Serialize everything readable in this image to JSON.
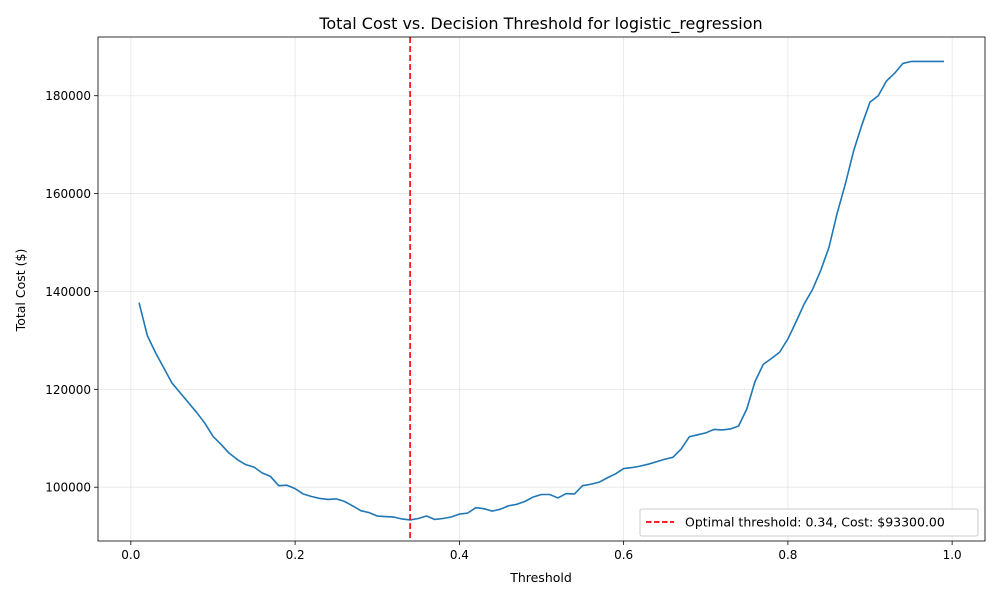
{
  "chart_data": {
    "type": "line",
    "title": "Total Cost vs. Decision Threshold for logistic_regression",
    "xlabel": "Threshold",
    "ylabel": "Total Cost ($)",
    "xlim": [
      -0.04,
      1.04
    ],
    "ylim": [
      89000,
      192000
    ],
    "xticks": [
      0.0,
      0.2,
      0.4,
      0.6,
      0.8,
      1.0
    ],
    "xtick_labels": [
      "0.0",
      "0.2",
      "0.4",
      "0.6",
      "0.8",
      "1.0"
    ],
    "yticks": [
      100000,
      120000,
      140000,
      160000,
      180000
    ],
    "ytick_labels": [
      "100000",
      "120000",
      "140000",
      "160000",
      "180000"
    ],
    "grid": true,
    "legend_position": "lower-right",
    "series": [
      {
        "color": "#1f77b4",
        "x": [
          0.01,
          0.02,
          0.03,
          0.04,
          0.05,
          0.06,
          0.07,
          0.08,
          0.09,
          0.1,
          0.11,
          0.12,
          0.13,
          0.14,
          0.15,
          0.16,
          0.17,
          0.18,
          0.19,
          0.2,
          0.21,
          0.22,
          0.23,
          0.24,
          0.25,
          0.26,
          0.27,
          0.28,
          0.29,
          0.3,
          0.31,
          0.32,
          0.33,
          0.34,
          0.35,
          0.36,
          0.37,
          0.38,
          0.39,
          0.4,
          0.41,
          0.42,
          0.43,
          0.44,
          0.45,
          0.46,
          0.47,
          0.48,
          0.49,
          0.5,
          0.51,
          0.52,
          0.53,
          0.54,
          0.55,
          0.56,
          0.57,
          0.58,
          0.59,
          0.6,
          0.61,
          0.62,
          0.63,
          0.64,
          0.65,
          0.66,
          0.67,
          0.68,
          0.69,
          0.7,
          0.71,
          0.72,
          0.73,
          0.74,
          0.75,
          0.76,
          0.77,
          0.78,
          0.79,
          0.8,
          0.81,
          0.82,
          0.83,
          0.84,
          0.85,
          0.86,
          0.87,
          0.88,
          0.89,
          0.9,
          0.91,
          0.92,
          0.93,
          0.94,
          0.95,
          0.96,
          0.97,
          0.98,
          0.99
        ],
        "y": [
          137700,
          131000,
          127500,
          124400,
          121300,
          119300,
          117300,
          115300,
          113100,
          110400,
          108700,
          106900,
          105600,
          104600,
          104100,
          102900,
          102200,
          100300,
          100400,
          99700,
          98600,
          98100,
          97700,
          97500,
          97600,
          97100,
          96200,
          95200,
          94800,
          94100,
          94000,
          93900,
          93500,
          93300,
          93600,
          94100,
          93400,
          93600,
          93900,
          94500,
          94700,
          95800,
          95600,
          95100,
          95500,
          96200,
          96500,
          97100,
          98000,
          98500,
          98500,
          97800,
          98700,
          98600,
          100300,
          100600,
          101000,
          101900,
          102700,
          103800,
          104000,
          104300,
          104700,
          105200,
          105700,
          106100,
          107800,
          110300,
          110700,
          111100,
          111800,
          111700,
          111900,
          112500,
          116000,
          121600,
          125100,
          126300,
          127600,
          130300,
          133800,
          137500,
          140400,
          144300,
          149000,
          156000,
          162000,
          168700,
          174000,
          178700,
          180000,
          183000,
          184600,
          186600,
          187000,
          187000,
          187000,
          187000,
          187000
        ]
      }
    ],
    "optimal": {
      "threshold": 0.34,
      "color": "#ff0000",
      "legend_label": "Optimal threshold: 0.34, Cost: $93300.00"
    }
  }
}
